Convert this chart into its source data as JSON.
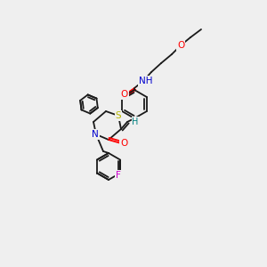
{
  "bg": "#efefef",
  "bc": "#1a1a1a",
  "colors": {
    "O": "#ff0000",
    "N": "#0000cd",
    "S": "#b8b800",
    "F": "#cc00cc",
    "H": "#008080",
    "C": "#1a1a1a"
  },
  "lw": 1.3
}
